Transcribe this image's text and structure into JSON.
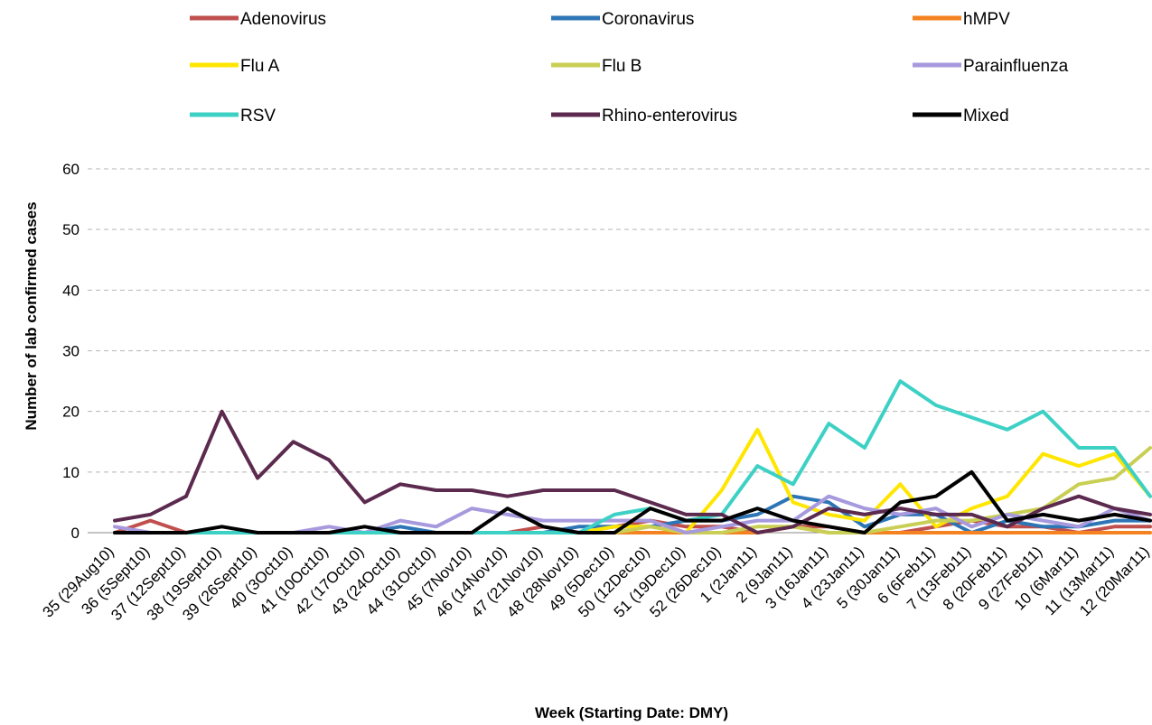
{
  "chart_data": {
    "type": "line",
    "title": "",
    "xlabel": "Week (Starting Date: DMY)",
    "ylabel": "Number of lab confirmed cases",
    "ylim": [
      0,
      60
    ],
    "yticks": [
      0,
      10,
      20,
      30,
      40,
      50,
      60
    ],
    "grid": true,
    "legend_position": "top",
    "categories": [
      "35 (29Aug10)",
      "36 (5Sept10)",
      "37 (12Sept10)",
      "38 (19Sept10)",
      "39 (26Sept10)",
      "40 (3Oct10)",
      "41 (10Oct10)",
      "42 (17Oct10)",
      "43 (24Oct10)",
      "44 (31Oct10)",
      "45 (7Nov10)",
      "46 (14Nov10)",
      "47 (21Nov10)",
      "48 (28Nov10)",
      "49 (5Dec10)",
      "50 (12Dec10)",
      "51 (19Dec10)",
      "52 (26Dec10)",
      "1 (2Jan11)",
      "2 (9Jan11)",
      "3 (16Jan11)",
      "4 (23Jan11)",
      "5 (30Jan11)",
      "6 (6Feb11)",
      "7 (13Feb11)",
      "8 (20Feb11)",
      "9 (27Feb11)",
      "10 (6Mar11)",
      "11 (13Mar11)",
      "12 (20Mar11)"
    ],
    "series": [
      {
        "name": "Adenovirus",
        "color": "#c0504d",
        "values": [
          0,
          2,
          0,
          0,
          0,
          0,
          0,
          0,
          0,
          0,
          0,
          0,
          1,
          0,
          1,
          2,
          1,
          1,
          0,
          1,
          1,
          0,
          0,
          1,
          2,
          1,
          1,
          0,
          1,
          1
        ]
      },
      {
        "name": "Coronavirus",
        "color": "#2e75b6",
        "values": [
          0,
          0,
          0,
          0,
          0,
          0,
          0,
          0,
          1,
          0,
          0,
          0,
          0,
          1,
          1,
          1,
          2,
          2,
          3,
          6,
          5,
          1,
          3,
          3,
          0,
          2,
          1,
          1,
          2,
          2
        ]
      },
      {
        "name": "hMPV",
        "color": "#f58220",
        "values": [
          0,
          0,
          0,
          0,
          0,
          0,
          0,
          0,
          0,
          0,
          0,
          0,
          0,
          0,
          0,
          0,
          0,
          0,
          0,
          1,
          0,
          0,
          0,
          0,
          0,
          0,
          0,
          0,
          0,
          0
        ]
      },
      {
        "name": "Flu A",
        "color": "#ffe600",
        "values": [
          0,
          0,
          0,
          0,
          0,
          0,
          0,
          0,
          0,
          0,
          0,
          0,
          0,
          0,
          1,
          1,
          0,
          7,
          17,
          5,
          3,
          2,
          8,
          1,
          4,
          6,
          13,
          11,
          13,
          6
        ]
      },
      {
        "name": "Flu B",
        "color": "#c9cf55",
        "values": [
          0,
          0,
          0,
          0,
          0,
          0,
          0,
          0,
          0,
          0,
          0,
          0,
          0,
          0,
          0,
          1,
          0,
          0,
          1,
          1,
          0,
          0,
          1,
          2,
          2,
          3,
          4,
          8,
          9,
          14
        ]
      },
      {
        "name": "Parainfluenza",
        "color": "#a799dd",
        "values": [
          1,
          0,
          0,
          0,
          0,
          0,
          1,
          0,
          2,
          1,
          4,
          3,
          2,
          2,
          2,
          2,
          0,
          1,
          2,
          2,
          6,
          4,
          3,
          4,
          1,
          3,
          2,
          1,
          4,
          2
        ]
      },
      {
        "name": "RSV",
        "color": "#3dd1c5",
        "values": [
          0,
          0,
          0,
          0,
          0,
          0,
          0,
          0,
          0,
          0,
          0,
          0,
          0,
          0,
          3,
          4,
          2,
          3,
          11,
          8,
          18,
          14,
          25,
          21,
          19,
          17,
          20,
          14,
          14,
          6
        ]
      },
      {
        "name": "Rhino-enterovirus",
        "color": "#5b2a4e",
        "values": [
          2,
          3,
          6,
          20,
          9,
          15,
          12,
          5,
          8,
          7,
          7,
          6,
          7,
          7,
          7,
          5,
          3,
          3,
          0,
          1,
          4,
          3,
          4,
          3,
          3,
          1,
          4,
          6,
          4,
          3
        ]
      },
      {
        "name": "Mixed",
        "color": "#000000",
        "values": [
          0,
          0,
          0,
          1,
          0,
          0,
          0,
          1,
          0,
          0,
          0,
          4,
          1,
          0,
          0,
          4,
          2,
          2,
          4,
          2,
          1,
          0,
          5,
          6,
          10,
          2,
          3,
          2,
          3,
          2
        ]
      }
    ]
  }
}
